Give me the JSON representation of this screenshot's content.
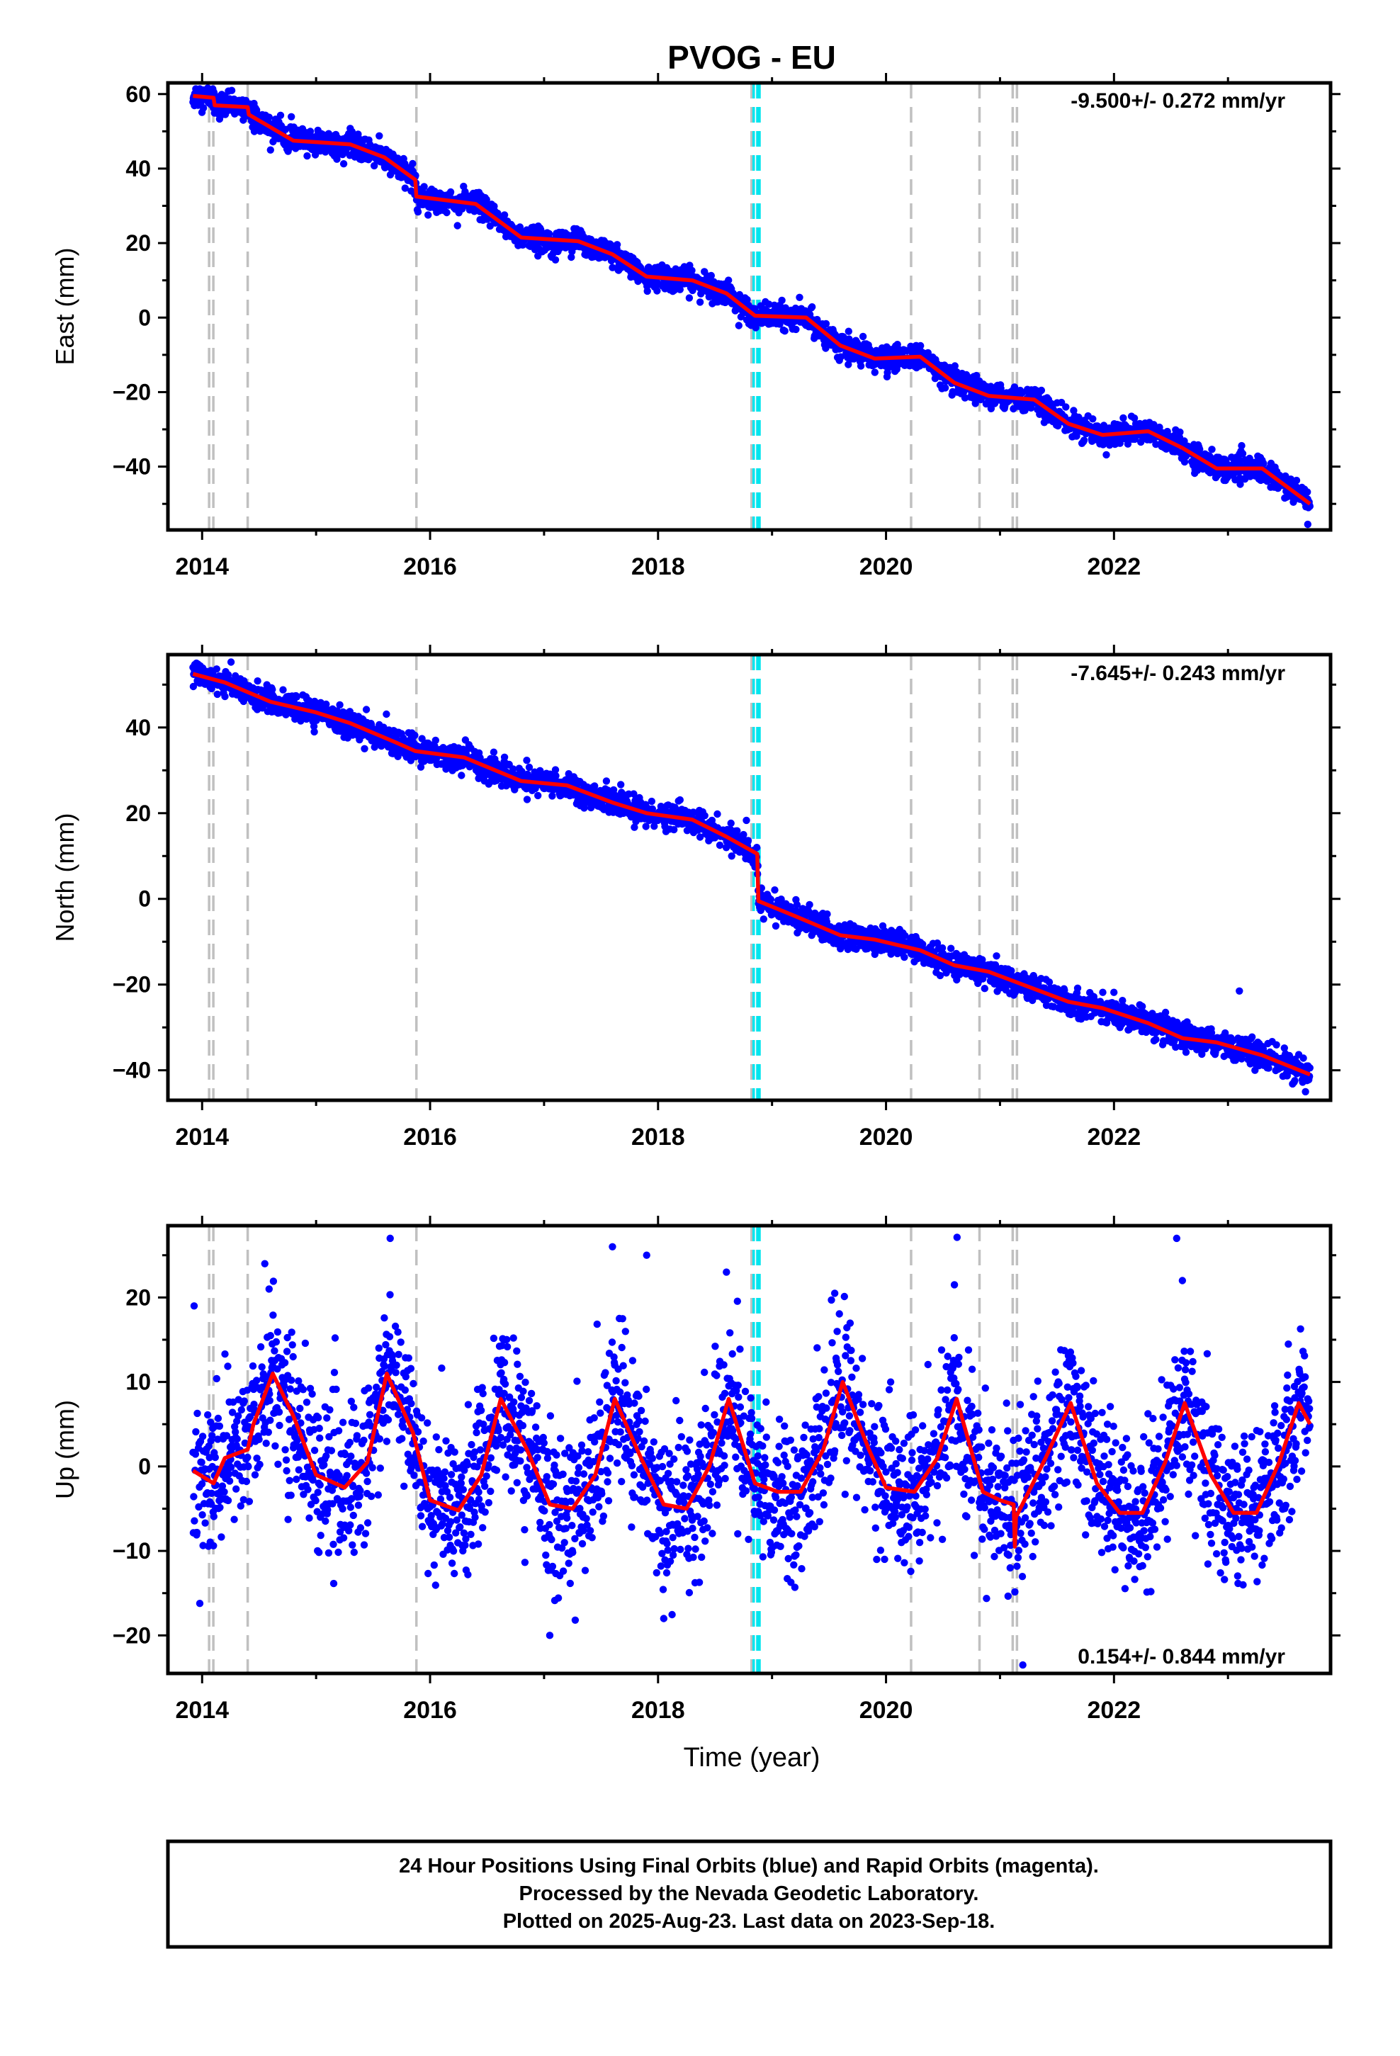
{
  "title": "PVOG - EU",
  "xlabel": "Time (year)",
  "footer": [
    "24 Hour Positions Using Final Orbits (blue) and Rapid Orbits (magenta).",
    "Processed by the Nevada Geodetic Laboratory.",
    "Plotted on 2025-Aug-23. Last data on 2023-Sep-18."
  ],
  "colors": {
    "points": "#0000ff",
    "model": "#ff0000",
    "gray_event": "#c0c0c0",
    "cyan_event": "#00e5ee",
    "frame": "#000000"
  },
  "chart_data": [
    {
      "type": "scatter",
      "panel": "east",
      "ylabel": "East (mm)",
      "rate_label": "-9.500+/- 0.272 mm/yr",
      "xlim": [
        2013.7,
        2023.9
      ],
      "ylim": [
        -57,
        63
      ],
      "x_ticks": [
        2014,
        2016,
        2018,
        2020,
        2022
      ],
      "y_ticks": [
        60,
        40,
        20,
        0,
        -20,
        -40
      ],
      "y_tick_labels": [
        "60",
        "40",
        "20",
        "0",
        "−20",
        "−40"
      ],
      "data_start": 2013.92,
      "data_end": 2023.72,
      "trend_mm_per_yr": -9.5,
      "model_points": [
        [
          2013.92,
          59.5
        ],
        [
          2014.1,
          59.0
        ],
        [
          2014.11,
          57.0
        ],
        [
          2014.4,
          56.5
        ],
        [
          2014.41,
          54.5
        ],
        [
          2014.8,
          47.5
        ],
        [
          2015.3,
          46.5
        ],
        [
          2015.6,
          43.0
        ],
        [
          2015.87,
          37.0
        ],
        [
          2015.88,
          32.5
        ],
        [
          2016.4,
          30.5
        ],
        [
          2016.8,
          21.5
        ],
        [
          2017.3,
          20.5
        ],
        [
          2017.6,
          17.0
        ],
        [
          2017.9,
          11.0
        ],
        [
          2018.3,
          10.0
        ],
        [
          2018.6,
          6.5
        ],
        [
          2018.85,
          0.5
        ],
        [
          2019.3,
          0.0
        ],
        [
          2019.6,
          -7.5
        ],
        [
          2019.9,
          -11.0
        ],
        [
          2020.3,
          -10.5
        ],
        [
          2020.6,
          -17.5
        ],
        [
          2020.9,
          -21.0
        ],
        [
          2021.3,
          -22.0
        ],
        [
          2021.6,
          -28.5
        ],
        [
          2021.9,
          -31.5
        ],
        [
          2022.3,
          -30.5
        ],
        [
          2022.6,
          -35.0
        ],
        [
          2022.9,
          -40.5
        ],
        [
          2023.3,
          -40.5
        ],
        [
          2023.72,
          -50.0
        ]
      ],
      "noise_mm": 1.6,
      "outliers": [
        [
          2023.7,
          -55.5
        ],
        [
          2014.6,
          45.0
        ]
      ]
    },
    {
      "type": "scatter",
      "panel": "north",
      "ylabel": "North (mm)",
      "rate_label": "-7.645+/- 0.243 mm/yr",
      "xlim": [
        2013.7,
        2023.9
      ],
      "ylim": [
        -47,
        57
      ],
      "x_ticks": [
        2014,
        2016,
        2018,
        2020,
        2022
      ],
      "y_ticks": [
        40,
        20,
        0,
        -20,
        -40
      ],
      "y_tick_labels": [
        "40",
        "20",
        "0",
        "−20",
        "−40"
      ],
      "data_start": 2013.92,
      "data_end": 2023.72,
      "trend_mm_per_yr": -7.645,
      "model_points": [
        [
          2013.92,
          52.5
        ],
        [
          2014.2,
          50.5
        ],
        [
          2014.6,
          46.0
        ],
        [
          2015.0,
          43.5
        ],
        [
          2015.3,
          41.0
        ],
        [
          2015.7,
          36.5
        ],
        [
          2015.87,
          34.5
        ],
        [
          2016.3,
          33.0
        ],
        [
          2016.8,
          27.5
        ],
        [
          2017.2,
          26.5
        ],
        [
          2017.6,
          22.5
        ],
        [
          2017.9,
          20.0
        ],
        [
          2018.3,
          18.5
        ],
        [
          2018.6,
          14.5
        ],
        [
          2018.87,
          10.5
        ],
        [
          2018.88,
          -0.5
        ],
        [
          2019.2,
          -4.0
        ],
        [
          2019.6,
          -8.5
        ],
        [
          2019.9,
          -9.5
        ],
        [
          2020.3,
          -12.0
        ],
        [
          2020.6,
          -15.5
        ],
        [
          2020.9,
          -17.0
        ],
        [
          2021.3,
          -21.0
        ],
        [
          2021.6,
          -24.0
        ],
        [
          2021.9,
          -25.5
        ],
        [
          2022.3,
          -29.0
        ],
        [
          2022.6,
          -32.5
        ],
        [
          2022.9,
          -33.5
        ],
        [
          2023.3,
          -36.5
        ],
        [
          2023.72,
          -41.0
        ]
      ],
      "noise_mm": 1.5,
      "outliers": [
        [
          2023.1,
          -21.5
        ],
        [
          2023.68,
          -45.0
        ],
        [
          2013.95,
          55.0
        ]
      ]
    },
    {
      "type": "scatter",
      "panel": "up",
      "ylabel": "Up (mm)",
      "rate_label": "0.154+/- 0.844 mm/yr",
      "xlim": [
        2013.7,
        2023.9
      ],
      "ylim": [
        -24.5,
        28.5
      ],
      "x_ticks": [
        2014,
        2016,
        2018,
        2020,
        2022
      ],
      "y_ticks": [
        20,
        10,
        0,
        -10,
        -20
      ],
      "y_tick_labels": [
        "20",
        "10",
        "0",
        "−10",
        "−20"
      ],
      "data_start": 2013.92,
      "data_end": 2023.72,
      "trend_mm_per_yr": 0.154,
      "model_points": [
        [
          2013.92,
          -0.5
        ],
        [
          2014.1,
          -2.0
        ],
        [
          2014.2,
          1.0
        ],
        [
          2014.4,
          2.0
        ],
        [
          2014.45,
          5.0
        ],
        [
          2014.62,
          11.0
        ],
        [
          2014.8,
          6.0
        ],
        [
          2015.0,
          -1.0
        ],
        [
          2015.25,
          -2.5
        ],
        [
          2015.45,
          0.5
        ],
        [
          2015.62,
          11.0
        ],
        [
          2015.85,
          4.0
        ],
        [
          2016.0,
          -4.0
        ],
        [
          2016.25,
          -5.2
        ],
        [
          2016.45,
          -1.0
        ],
        [
          2016.62,
          8.0
        ],
        [
          2016.85,
          2.0
        ],
        [
          2017.05,
          -4.5
        ],
        [
          2017.25,
          -5.0
        ],
        [
          2017.45,
          -1.0
        ],
        [
          2017.62,
          8.0
        ],
        [
          2017.85,
          1.0
        ],
        [
          2018.05,
          -4.5
        ],
        [
          2018.25,
          -5.0
        ],
        [
          2018.45,
          0.0
        ],
        [
          2018.62,
          8.0
        ],
        [
          2018.85,
          -2.0
        ],
        [
          2019.05,
          -3.0
        ],
        [
          2019.25,
          -3.0
        ],
        [
          2019.45,
          2.0
        ],
        [
          2019.62,
          10.0
        ],
        [
          2019.85,
          2.0
        ],
        [
          2020.0,
          -2.5
        ],
        [
          2020.25,
          -3.0
        ],
        [
          2020.45,
          1.0
        ],
        [
          2020.62,
          8.0
        ],
        [
          2020.85,
          -3.0
        ],
        [
          2021.0,
          -4.0
        ],
        [
          2021.12,
          -4.5
        ],
        [
          2021.13,
          -9.5
        ],
        [
          2021.14,
          -6.0
        ],
        [
          2021.4,
          1.0
        ],
        [
          2021.62,
          7.5
        ],
        [
          2021.85,
          -2.0
        ],
        [
          2022.05,
          -5.5
        ],
        [
          2022.25,
          -5.5
        ],
        [
          2022.45,
          0.5
        ],
        [
          2022.62,
          7.5
        ],
        [
          2022.85,
          -1.0
        ],
        [
          2023.05,
          -5.5
        ],
        [
          2023.25,
          -5.5
        ],
        [
          2023.45,
          0.5
        ],
        [
          2023.62,
          7.5
        ],
        [
          2023.72,
          5.0
        ]
      ],
      "noise_mm": 4.5,
      "outliers": [
        [
          2013.93,
          19.0
        ],
        [
          2015.65,
          27.0
        ],
        [
          2017.05,
          -20.0
        ],
        [
          2018.05,
          -18.0
        ],
        [
          2021.2,
          -23.5
        ],
        [
          2022.55,
          27.0
        ],
        [
          2022.6,
          22.0
        ],
        [
          2020.6,
          21.5
        ],
        [
          2014.55,
          24.0
        ],
        [
          2018.6,
          23.0
        ],
        [
          2019.55,
          20.5
        ],
        [
          2017.6,
          26.0
        ],
        [
          2017.9,
          25.0
        ]
      ]
    }
  ],
  "events": {
    "gray": [
      2014.08,
      2014.4,
      2015.88,
      2020.22,
      2020.82,
      2021.13
    ],
    "gray_double": [
      2014.08,
      2021.13
    ],
    "cyan": [
      2018.82,
      2018.89
    ]
  }
}
